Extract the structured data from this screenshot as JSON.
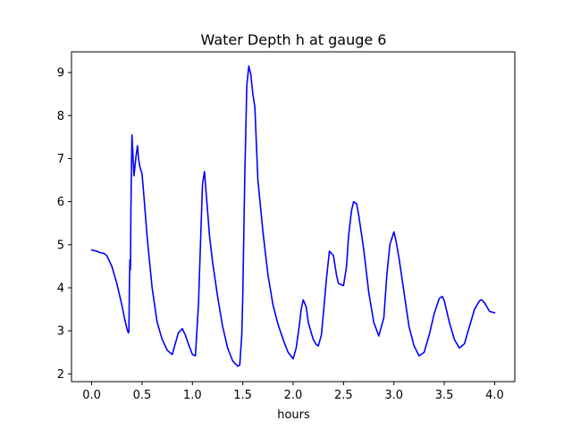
{
  "chart_data": {
    "type": "line",
    "title": "Water Depth h at gauge 6",
    "xlabel": "hours",
    "ylabel": "",
    "xlim": [
      -0.2,
      4.2
    ],
    "ylim": [
      1.82,
      9.48
    ],
    "xticks": [
      0.0,
      0.5,
      1.0,
      1.5,
      2.0,
      2.5,
      3.0,
      3.5,
      4.0
    ],
    "xtick_labels": [
      "0.0",
      "0.5",
      "1.0",
      "1.5",
      "2.0",
      "2.5",
      "3.0",
      "3.5",
      "4.0"
    ],
    "yticks": [
      2,
      3,
      4,
      5,
      6,
      7,
      8,
      9
    ],
    "ytick_labels": [
      "2",
      "3",
      "4",
      "5",
      "6",
      "7",
      "8",
      "9"
    ],
    "grid": false,
    "legend": false,
    "series": [
      {
        "color": "#0000ff",
        "x": [
          0.0,
          0.05,
          0.08,
          0.12,
          0.15,
          0.2,
          0.25,
          0.3,
          0.33,
          0.35,
          0.365,
          0.37,
          0.375,
          0.38,
          0.385,
          0.39,
          0.4,
          0.42,
          0.44,
          0.455,
          0.465,
          0.48,
          0.5,
          0.52,
          0.55,
          0.6,
          0.65,
          0.7,
          0.75,
          0.8,
          0.83,
          0.86,
          0.9,
          0.93,
          0.96,
          1.0,
          1.03,
          1.06,
          1.08,
          1.1,
          1.12,
          1.14,
          1.17,
          1.2,
          1.25,
          1.3,
          1.35,
          1.4,
          1.45,
          1.47,
          1.49,
          1.5,
          1.52,
          1.54,
          1.56,
          1.58,
          1.6,
          1.62,
          1.65,
          1.7,
          1.75,
          1.8,
          1.85,
          1.9,
          1.95,
          2.0,
          2.03,
          2.06,
          2.08,
          2.1,
          2.13,
          2.15,
          2.18,
          2.2,
          2.23,
          2.25,
          2.28,
          2.3,
          2.33,
          2.36,
          2.4,
          2.43,
          2.45,
          2.5,
          2.53,
          2.55,
          2.58,
          2.6,
          2.63,
          2.65,
          2.7,
          2.75,
          2.8,
          2.85,
          2.9,
          2.93,
          2.96,
          3.0,
          3.02,
          3.05,
          3.1,
          3.15,
          3.2,
          3.25,
          3.3,
          3.35,
          3.4,
          3.45,
          3.48,
          3.5,
          3.55,
          3.6,
          3.65,
          3.7,
          3.75,
          3.8,
          3.85,
          3.87,
          3.9,
          3.95,
          4.0
        ],
        "y": [
          4.88,
          4.85,
          4.82,
          4.8,
          4.75,
          4.5,
          4.1,
          3.6,
          3.25,
          3.05,
          2.95,
          3.0,
          4.1,
          4.65,
          4.42,
          5.9,
          7.55,
          6.6,
          7.05,
          7.3,
          7.0,
          6.8,
          6.65,
          6.1,
          5.2,
          4.0,
          3.2,
          2.8,
          2.55,
          2.45,
          2.7,
          2.95,
          3.05,
          2.9,
          2.7,
          2.45,
          2.42,
          3.6,
          5.0,
          6.4,
          6.7,
          6.1,
          5.2,
          4.6,
          3.8,
          3.1,
          2.6,
          2.3,
          2.18,
          2.2,
          2.9,
          3.8,
          6.6,
          8.7,
          9.15,
          8.95,
          8.5,
          8.2,
          6.5,
          5.3,
          4.3,
          3.6,
          3.15,
          2.8,
          2.5,
          2.35,
          2.6,
          3.1,
          3.5,
          3.72,
          3.55,
          3.2,
          2.95,
          2.8,
          2.68,
          2.65,
          2.9,
          3.4,
          4.2,
          4.85,
          4.75,
          4.3,
          4.1,
          4.05,
          4.5,
          5.2,
          5.8,
          6.0,
          5.95,
          5.7,
          4.9,
          3.9,
          3.2,
          2.88,
          3.3,
          4.3,
          5.0,
          5.3,
          5.1,
          4.7,
          3.9,
          3.1,
          2.65,
          2.42,
          2.5,
          2.9,
          3.4,
          3.75,
          3.8,
          3.7,
          3.2,
          2.8,
          2.6,
          2.7,
          3.1,
          3.5,
          3.7,
          3.72,
          3.65,
          3.45,
          3.42
        ]
      }
    ]
  }
}
